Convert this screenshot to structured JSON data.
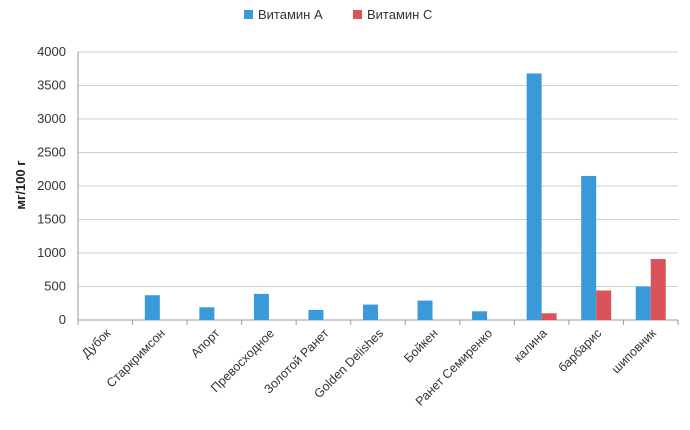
{
  "chart_data": {
    "type": "bar",
    "title": "",
    "xlabel": "",
    "ylabel": "мг/100 г",
    "ylim": [
      0,
      4000
    ],
    "yticks": [
      0,
      500,
      1000,
      1500,
      2000,
      2500,
      3000,
      3500,
      4000
    ],
    "grid": true,
    "legend_position": "top",
    "categories": [
      "Дубок",
      "Старкримсон",
      "Апорт",
      "Превосходное",
      "Золотой Ранет",
      "Golden Delishes",
      "Бойкен",
      "Ранет Семиренко",
      "калина",
      "барбарис",
      "шиповник"
    ],
    "series": [
      {
        "name": "Витамин А",
        "color": "#3a9ad9",
        "values": [
          0,
          370,
          190,
          390,
          150,
          230,
          290,
          130,
          3680,
          2150,
          500
        ]
      },
      {
        "name": "Витамин С",
        "color": "#d9535a",
        "values": [
          0,
          0,
          0,
          0,
          0,
          0,
          0,
          0,
          100,
          440,
          910
        ]
      }
    ]
  }
}
